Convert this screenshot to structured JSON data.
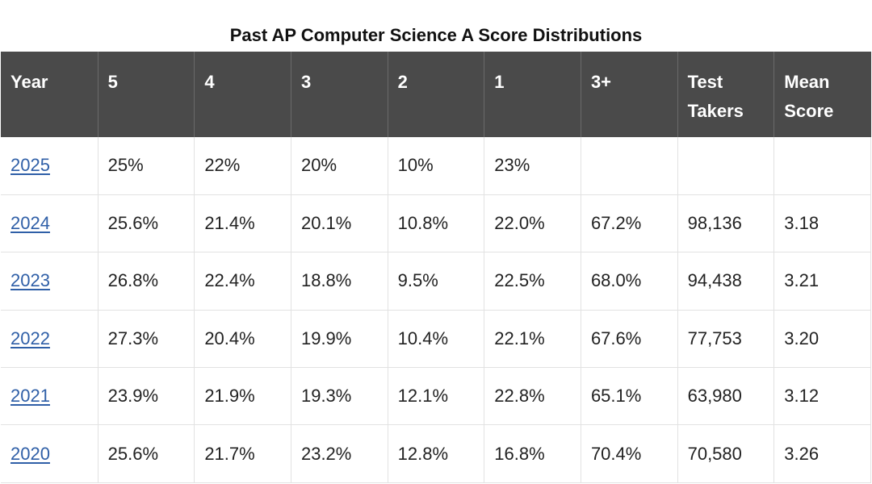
{
  "title": "Past AP Computer Science A Score Distributions",
  "table": {
    "headers": [
      "Year",
      "5",
      "4",
      "3",
      "2",
      "1",
      "3+",
      "Test Takers",
      "Mean Score"
    ],
    "rows": [
      [
        "2025",
        "25%",
        "22%",
        "20%",
        "10%",
        "23%",
        "",
        "",
        ""
      ],
      [
        "2024",
        "25.6%",
        "21.4%",
        "20.1%",
        "10.8%",
        "22.0%",
        "67.2%",
        "98,136",
        "3.18"
      ],
      [
        "2023",
        "26.8%",
        "22.4%",
        "18.8%",
        "9.5%",
        "22.5%",
        "68.0%",
        "94,438",
        "3.21"
      ],
      [
        "2022",
        "27.3%",
        "20.4%",
        "19.9%",
        "10.4%",
        "22.1%",
        "67.6%",
        "77,753",
        "3.20"
      ],
      [
        "2021",
        "23.9%",
        "21.9%",
        "19.3%",
        "12.1%",
        "22.8%",
        "65.1%",
        "63,980",
        "3.12"
      ],
      [
        "2020",
        "25.6%",
        "21.7%",
        "23.2%",
        "12.8%",
        "16.8%",
        "70.4%",
        "70,580",
        "3.26"
      ]
    ]
  },
  "colors": {
    "header_bg": "#4a4a4a",
    "header_text": "#ffffff",
    "link": "#2f5fa7",
    "grid": "#e2e2e2"
  }
}
